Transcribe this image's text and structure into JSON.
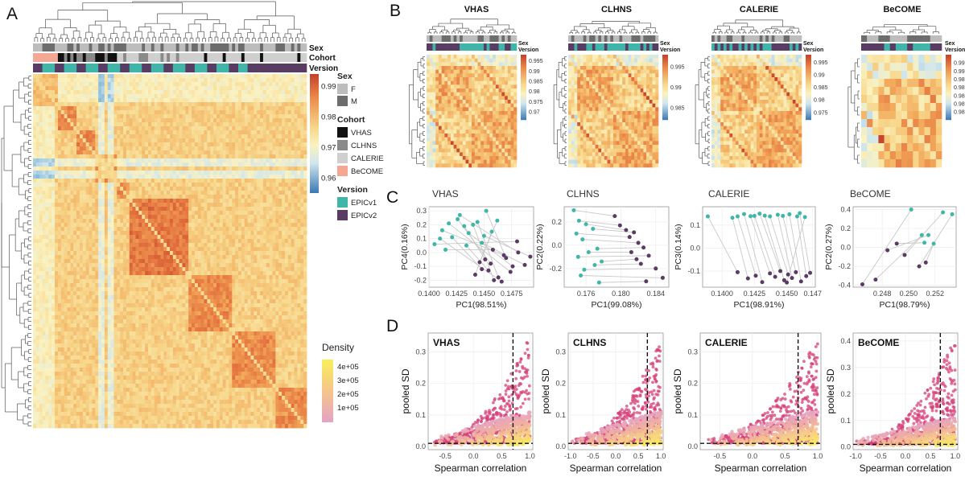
{
  "figure": {
    "panel_labels": [
      "A",
      "B",
      "C",
      "D"
    ]
  },
  "palette": {
    "heat": [
      "#3a78b4",
      "#7fb5d5",
      "#cfe6ee",
      "#fbf2c0",
      "#f7d68a",
      "#f2a85a",
      "#e4733f",
      "#c3412a"
    ],
    "density": [
      "#e3a3c4",
      "#f0b0a0",
      "#f7d580",
      "#f8ef5a"
    ],
    "sex": [
      "#bdbdbd",
      "#6d6d6d"
    ],
    "cohort": [
      "#111111",
      "#8a8a8a",
      "#cfcfcf",
      "#f4a792"
    ],
    "version": [
      "#3fb6a7",
      "#583c64"
    ],
    "pca": [
      "#3fb6a7",
      "#5b3a63"
    ],
    "scatter_pink": "#d6427a",
    "dend": "#555555"
  },
  "panel_a": {
    "track_labels": [
      "Sex",
      "Cohort",
      "Version"
    ],
    "colorbar_ticks": [
      "0.99",
      "0.98",
      "0.97",
      "0.96"
    ],
    "colorbar_values": [
      0.99,
      0.98,
      0.97,
      0.96
    ],
    "legend": {
      "sex": {
        "title": "Sex",
        "items": [
          "F",
          "M"
        ]
      },
      "cohort": {
        "title": "Cohort",
        "items": [
          "VHAS",
          "CLHNS",
          "CALERIE",
          "BeCOME"
        ]
      },
      "version": {
        "title": "Version",
        "items": [
          "EPICv1",
          "EPICv2"
        ]
      },
      "density": {
        "title": "Density",
        "items": [
          "4e+05",
          "3e+05",
          "2e+05",
          "1e+05"
        ]
      }
    }
  },
  "panel_b": {
    "track_labels": [
      "Sex",
      "Version"
    ],
    "heatmaps": [
      {
        "title": "VHAS",
        "ticks": [
          "0.995",
          "0.99",
          "0.985",
          "0.98",
          "0.975",
          "0.97"
        ]
      },
      {
        "title": "CLHNS",
        "ticks": [
          "0.995",
          "0.99",
          "0.985"
        ]
      },
      {
        "title": "CALERIE",
        "ticks": [
          "0.995",
          "0.99",
          "0.985",
          "0.98",
          "0.975"
        ]
      },
      {
        "title": "BeCOME",
        "ticks": [
          "0.992",
          "0.99",
          "0.988",
          "0.986",
          "0.984",
          "0.982",
          "0.98"
        ]
      }
    ]
  },
  "chart_data": [
    {
      "type": "scatter",
      "panel": "C",
      "title": "VHAS",
      "xlabel": "PC1(98.51%)",
      "ylabel": "PC4(0.16%)",
      "xlim": [
        0.14,
        0.1495
      ],
      "ylim": [
        -0.25,
        0.33
      ],
      "xticks": [
        "0.1400",
        "0.1425",
        "0.1450",
        "0.1475"
      ],
      "yticks": [
        "0.3",
        "0.2",
        "0.1",
        "0.0",
        "-0.1",
        "-0.2"
      ],
      "series": [
        {
          "name": "EPICv1",
          "x": [
            0.1412,
            0.1418,
            0.1426,
            0.1432,
            0.1405,
            0.1444,
            0.1452,
            0.1421,
            0.1415,
            0.1436,
            0.1448,
            0.1457,
            0.141,
            0.144,
            0.1428,
            0.1434,
            0.1462,
            0.145
          ],
          "y": [
            0.16,
            0.21,
            0.24,
            0.19,
            0.06,
            0.22,
            0.3,
            0.11,
            0.02,
            0.14,
            0.07,
            0.15,
            0.1,
            0.2,
            0.27,
            0.05,
            0.23,
            0.12
          ]
        },
        {
          "name": "EPICv2",
          "x": [
            0.1468,
            0.1474,
            0.1456,
            0.1451,
            0.148,
            0.1463,
            0.147,
            0.1448,
            0.1458,
            0.1476,
            0.1487,
            0.1442,
            0.1466,
            0.1459,
            0.1481,
            0.1454,
            0.1446,
            0.1492
          ],
          "y": [
            -0.02,
            -0.14,
            -0.08,
            -0.05,
            0.08,
            -0.18,
            -0.04,
            -0.12,
            0.02,
            -0.1,
            -0.09,
            -0.16,
            -0.21,
            -0.2,
            0.0,
            -0.13,
            -0.07,
            -0.03
          ]
        }
      ]
    },
    {
      "type": "scatter",
      "panel": "C",
      "title": "CLHNS",
      "xlabel": "PC1(99.08%)",
      "ylabel": "PC2(0.22%)",
      "xlim": [
        0.1735,
        0.1855
      ],
      "ylim": [
        -0.36,
        0.33
      ],
      "xticks": [
        "0.176",
        "0.180",
        "0.184"
      ],
      "yticks": [
        "0.2",
        "0.0",
        "-0.2"
      ],
      "series": [
        {
          "name": "EPICv1",
          "x": [
            0.1746,
            0.1752,
            0.176,
            0.1749,
            0.1768,
            0.1756,
            0.1773,
            0.1763,
            0.1751,
            0.1778,
            0.177,
            0.1758,
            0.1754,
            0.1775
          ],
          "y": [
            0.3,
            0.21,
            0.18,
            0.1,
            0.14,
            0.05,
            -0.03,
            -0.06,
            -0.1,
            -0.14,
            -0.17,
            -0.21,
            -0.26,
            -0.32
          ]
        },
        {
          "name": "EPICv2",
          "x": [
            0.1793,
            0.1799,
            0.1806,
            0.181,
            0.1815,
            0.182,
            0.1826,
            0.1812,
            0.1832,
            0.1818,
            0.1823,
            0.184,
            0.1848,
            0.1829
          ],
          "y": [
            0.25,
            0.17,
            0.13,
            0.07,
            0.11,
            0.02,
            -0.02,
            -0.06,
            -0.09,
            -0.12,
            -0.16,
            -0.2,
            -0.28,
            -0.31
          ]
        }
      ]
    },
    {
      "type": "scatter",
      "panel": "C",
      "title": "CALERIE",
      "xlabel": "PC1(98.91%)",
      "ylabel": "PC3(0.14%)",
      "xlim": [
        0.1385,
        0.1472
      ],
      "ylim": [
        -0.17,
        0.18
      ],
      "xticks": [
        "0.1400",
        "0.1425",
        "0.1450",
        "0.147"
      ],
      "yticks": [
        "0.1",
        "0.0",
        "-0.1"
      ],
      "series": [
        {
          "name": "EPICv1",
          "x": [
            0.1389,
            0.1408,
            0.1412,
            0.1417,
            0.1422,
            0.1425,
            0.1429,
            0.1433,
            0.1437,
            0.1443,
            0.1447,
            0.1452,
            0.1458,
            0.146,
            0.1464
          ],
          "y": [
            0.138,
            0.132,
            0.138,
            0.148,
            0.139,
            0.14,
            0.15,
            0.141,
            0.138,
            0.145,
            0.14,
            0.147,
            0.138,
            0.152,
            0.135
          ]
        },
        {
          "name": "EPICv2",
          "x": [
            0.1412,
            0.142,
            0.1426,
            0.1431,
            0.1437,
            0.1441,
            0.1445,
            0.1448,
            0.1451,
            0.1454,
            0.1457,
            0.1461,
            0.1465,
            0.1468,
            0.145
          ],
          "y": [
            -0.105,
            -0.132,
            -0.12,
            -0.148,
            -0.11,
            -0.125,
            -0.1,
            -0.14,
            -0.115,
            -0.13,
            -0.105,
            -0.145,
            -0.122,
            -0.108,
            -0.15
          ]
        }
      ]
    },
    {
      "type": "scatter",
      "panel": "C",
      "title": "BeCOME",
      "xlabel": "PC1(98.79%)",
      "ylabel": "PC2(0.27%)",
      "xlim": [
        0.2458,
        0.2536
      ],
      "ylim": [
        -0.42,
        0.43
      ],
      "xticks": [
        "0.248",
        "0.250",
        "0.252"
      ],
      "yticks": [
        "0.4",
        "0.2",
        "0.0",
        "-0.2",
        "-0.4"
      ],
      "series": [
        {
          "name": "EPICv1",
          "x": [
            0.2502,
            0.251,
            0.2515,
            0.2512,
            0.2526,
            0.2533,
            0.2519
          ],
          "y": [
            0.4,
            0.13,
            0.13,
            0.05,
            0.37,
            0.35,
            0.04
          ]
        },
        {
          "name": "EPICv2",
          "x": [
            0.2465,
            0.2475,
            0.2484,
            0.2491,
            0.2497,
            0.2508,
            0.2513
          ],
          "y": [
            -0.39,
            -0.34,
            -0.03,
            0.04,
            -0.08,
            -0.2,
            -0.16
          ]
        }
      ]
    },
    {
      "type": "scatter",
      "panel": "D",
      "title": "VHAS",
      "xlabel": "Spearman correlation",
      "ylabel": "pooled SD",
      "xlim": [
        -0.8,
        1.05
      ],
      "ylim": [
        -0.01,
        0.36
      ],
      "xticks": [
        "-0.5",
        "0.0",
        "0.5",
        "1.0"
      ],
      "yticks": [
        "0.0",
        "0.1",
        "0.2",
        "0.3"
      ],
      "vline": 0.7,
      "hline": 0.01
    },
    {
      "type": "scatter",
      "panel": "D",
      "title": "CLHNS",
      "xlabel": "Spearman correlation",
      "ylabel": "pooled SD",
      "xlim": [
        -1.05,
        1.05
      ],
      "ylim": [
        -0.01,
        0.36
      ],
      "xticks": [
        "-1.0",
        "-0.5",
        "0.0",
        "0.5",
        "1.0"
      ],
      "yticks": [
        "0.0",
        "0.1",
        "0.2",
        "0.3"
      ],
      "vline": 0.7,
      "hline": 0.01
    },
    {
      "type": "scatter",
      "panel": "D",
      "title": "CALERIE",
      "xlabel": "Spearman correlation",
      "ylabel": "pooled SD",
      "xlim": [
        -0.8,
        1.05
      ],
      "ylim": [
        -0.01,
        0.36
      ],
      "xticks": [
        "-0.5",
        "0.0",
        "0.5",
        "1.0"
      ],
      "yticks": [
        "0.0",
        "0.1",
        "0.2",
        "0.3"
      ],
      "vline": 0.7,
      "hline": 0.01
    },
    {
      "type": "scatter",
      "panel": "D",
      "title": "BeCOME",
      "xlabel": "Spearman correlation",
      "ylabel": "pooled SD",
      "xlim": [
        -1.05,
        1.05
      ],
      "ylim": [
        -0.01,
        0.43
      ],
      "xticks": [
        "-1.0",
        "-0.5",
        "0.0",
        "0.5",
        "1.0"
      ],
      "yticks": [
        "0.0",
        "0.1",
        "0.2",
        "0.3",
        "0.4"
      ],
      "vline": 0.7,
      "hline": 0.01
    }
  ]
}
